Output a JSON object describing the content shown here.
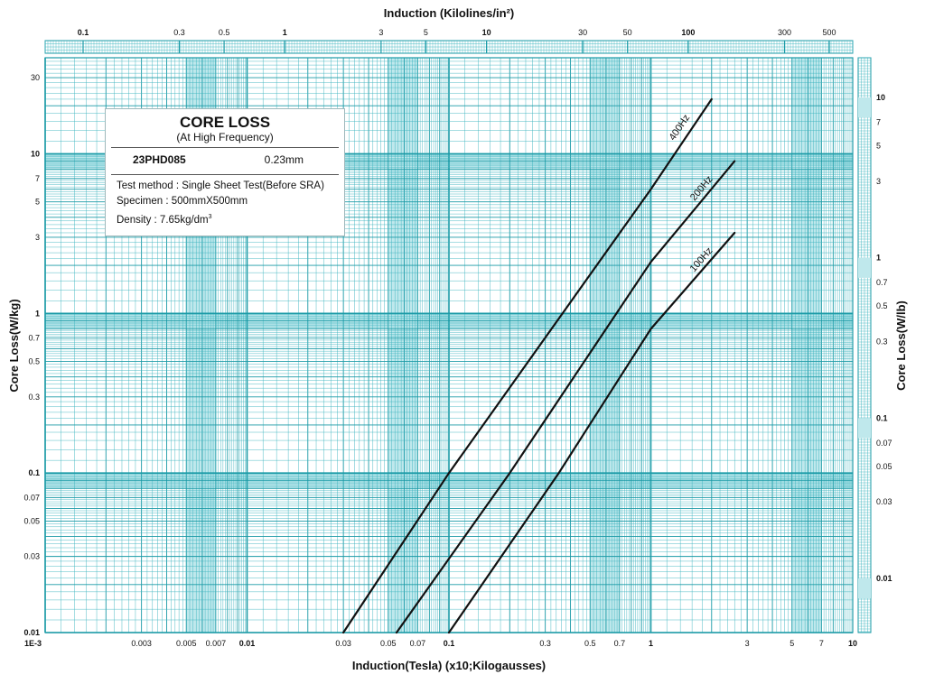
{
  "chart_data": {
    "type": "line",
    "x_scale": "log",
    "y_scale": "log",
    "xlim": [
      0.001,
      10
    ],
    "ylim": [
      0.01,
      40
    ],
    "grid": true,
    "title": "CORE LOSS",
    "subtitle": "(At High Frequency)",
    "xlabel": "Induction(Tesla) (x10;Kilogausses)",
    "ylabel": "Core Loss(W/kg)",
    "top_xlabel": "Induction (Kilolines/in²)",
    "right_ylabel": "Core Loss(W/lb)",
    "grade": "23PHD085",
    "thickness": "0.23mm",
    "test_method": "Test method : Single Sheet Test(Before SRA)",
    "specimen": "Specimen : 500mmX500mm",
    "density_prefix": "Density : 7.65kg/dm",
    "density_sup": "3",
    "bottom_ticks": [
      {
        "label": "1E-3",
        "value": 0.001,
        "bold": true
      },
      {
        "label": "0.003",
        "value": 0.003,
        "bold": false
      },
      {
        "label": "0.005",
        "value": 0.005,
        "bold": false
      },
      {
        "label": "0.007",
        "value": 0.007,
        "bold": false
      },
      {
        "label": "0.01",
        "value": 0.01,
        "bold": true
      },
      {
        "label": "0.03",
        "value": 0.03,
        "bold": false
      },
      {
        "label": "0.05",
        "value": 0.05,
        "bold": false
      },
      {
        "label": "0.07",
        "value": 0.07,
        "bold": false
      },
      {
        "label": "0.1",
        "value": 0.1,
        "bold": true
      },
      {
        "label": "0.3",
        "value": 0.3,
        "bold": false
      },
      {
        "label": "0.5",
        "value": 0.5,
        "bold": false
      },
      {
        "label": "0.7",
        "value": 0.7,
        "bold": false
      },
      {
        "label": "1",
        "value": 1,
        "bold": true
      },
      {
        "label": "3",
        "value": 3,
        "bold": false
      },
      {
        "label": "5",
        "value": 5,
        "bold": false
      },
      {
        "label": "7",
        "value": 7,
        "bold": false
      },
      {
        "label": "10",
        "value": 10,
        "bold": true
      }
    ],
    "left_ticks": [
      {
        "label": "30",
        "value": 30,
        "bold": false
      },
      {
        "label": "10",
        "value": 10,
        "bold": true
      },
      {
        "label": "7",
        "value": 7,
        "bold": false
      },
      {
        "label": "5",
        "value": 5,
        "bold": false
      },
      {
        "label": "3",
        "value": 3,
        "bold": false
      },
      {
        "label": "1",
        "value": 1,
        "bold": true
      },
      {
        "label": "0.7",
        "value": 0.7,
        "bold": false
      },
      {
        "label": "0.5",
        "value": 0.5,
        "bold": false
      },
      {
        "label": "0.3",
        "value": 0.3,
        "bold": false
      },
      {
        "label": "0.1",
        "value": 0.1,
        "bold": true
      },
      {
        "label": "0.07",
        "value": 0.07,
        "bold": false
      },
      {
        "label": "0.05",
        "value": 0.05,
        "bold": false
      },
      {
        "label": "0.03",
        "value": 0.03,
        "bold": false
      },
      {
        "label": "0.01",
        "value": 0.01,
        "bold": true
      }
    ],
    "top_ticks": [
      {
        "label": "0.1",
        "value": 0.1,
        "bold": true
      },
      {
        "label": "0.3",
        "value": 0.3,
        "bold": false
      },
      {
        "label": "0.5",
        "value": 0.5,
        "bold": false
      },
      {
        "label": "1",
        "value": 1,
        "bold": true
      },
      {
        "label": "3",
        "value": 3,
        "bold": false
      },
      {
        "label": "5",
        "value": 5,
        "bold": false
      },
      {
        "label": "10",
        "value": 10,
        "bold": true
      },
      {
        "label": "30",
        "value": 30,
        "bold": false
      },
      {
        "label": "50",
        "value": 50,
        "bold": false
      },
      {
        "label": "100",
        "value": 100,
        "bold": true
      },
      {
        "label": "300",
        "value": 300,
        "bold": false
      },
      {
        "label": "500",
        "value": 500,
        "bold": false
      }
    ],
    "right_ticks": [
      {
        "label": "10",
        "value": 10,
        "bold": true
      },
      {
        "label": "7",
        "value": 7,
        "bold": false
      },
      {
        "label": "5",
        "value": 5,
        "bold": false
      },
      {
        "label": "3",
        "value": 3,
        "bold": false
      },
      {
        "label": "1",
        "value": 1,
        "bold": true
      },
      {
        "label": "0.7",
        "value": 0.7,
        "bold": false
      },
      {
        "label": "0.5",
        "value": 0.5,
        "bold": false
      },
      {
        "label": "0.3",
        "value": 0.3,
        "bold": false
      },
      {
        "label": "0.1",
        "value": 0.1,
        "bold": true
      },
      {
        "label": "0.07",
        "value": 0.07,
        "bold": false
      },
      {
        "label": "0.05",
        "value": 0.05,
        "bold": false
      },
      {
        "label": "0.03",
        "value": 0.03,
        "bold": false
      },
      {
        "label": "0.01",
        "value": 0.01,
        "bold": true
      }
    ],
    "series": [
      {
        "name": "400Hz",
        "points": [
          [
            0.03,
            0.01
          ],
          [
            0.1,
            0.1
          ],
          [
            1.0,
            6.0
          ],
          [
            2.0,
            22.0
          ]
        ]
      },
      {
        "name": "200Hz",
        "points": [
          [
            0.055,
            0.01
          ],
          [
            0.2,
            0.1
          ],
          [
            1.0,
            2.1
          ],
          [
            2.6,
            9.0
          ]
        ]
      },
      {
        "name": "100Hz",
        "points": [
          [
            0.1,
            0.01
          ],
          [
            0.35,
            0.1
          ],
          [
            1.0,
            0.8
          ],
          [
            2.6,
            3.2
          ]
        ]
      }
    ],
    "colors": {
      "grid": "#3bb3be",
      "grid_major": "#1a9aa6",
      "band": "#bfe8ec",
      "curve": "#111111"
    }
  }
}
